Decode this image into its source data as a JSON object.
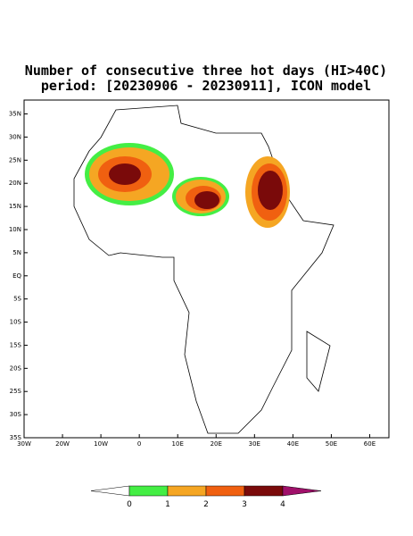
{
  "map": {
    "title": "Number of consecutive three hot days (HI>40C)",
    "subtitle": "period: [20230906 - 20230911], ICON model",
    "xlim": [
      -30,
      65
    ],
    "ylim": [
      -35,
      38
    ],
    "xticks": [
      {
        "value": -30,
        "label": "30W"
      },
      {
        "value": -20,
        "label": "20W"
      },
      {
        "value": -10,
        "label": "10W"
      },
      0,
      {
        "value": 10,
        "label": "10E"
      },
      {
        "value": 20,
        "label": "20E"
      },
      {
        "value": 30,
        "label": "30E"
      },
      {
        "value": 40,
        "label": "40E"
      },
      {
        "value": 50,
        "label": "50E"
      },
      {
        "value": 60,
        "label": "60E"
      }
    ],
    "yticks": [
      {
        "value": 35,
        "label": "35N"
      },
      {
        "value": 30,
        "label": "30N"
      },
      {
        "value": 25,
        "label": "25N"
      },
      {
        "value": 20,
        "label": "20N"
      },
      {
        "value": 15,
        "label": "15N"
      },
      {
        "value": 10,
        "label": "10N"
      },
      {
        "value": 5,
        "label": "5N"
      },
      {
        "value": 0,
        "label": "EQ"
      },
      {
        "value": -5,
        "label": "5S"
      },
      {
        "value": -10,
        "label": "10S"
      },
      {
        "value": -15,
        "label": "15S"
      },
      {
        "value": -20,
        "label": "20S"
      },
      {
        "value": -25,
        "label": "25S"
      },
      {
        "value": -30,
        "label": "30S"
      },
      {
        "value": -35,
        "label": "35S"
      }
    ],
    "colorbar": {
      "levels": [
        0,
        1,
        2,
        3,
        4
      ],
      "colors": [
        "#ffffff",
        "#44ee44",
        "#f5a623",
        "#f06010",
        "#7a0a0a",
        "#a0106a"
      ]
    }
  }
}
